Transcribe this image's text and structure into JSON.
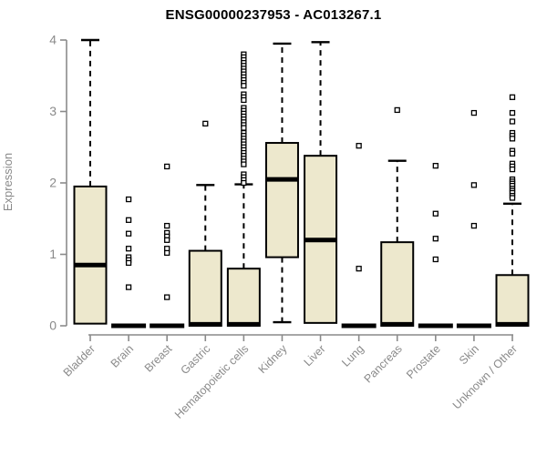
{
  "chart_data": {
    "type": "boxplot",
    "title": "ENSG00000237953 - AC013267.1",
    "ylabel": "Expression",
    "xlabel": "",
    "ylim": [
      0,
      4
    ],
    "yticks": [
      0,
      1,
      2,
      3,
      4
    ],
    "grid": false,
    "legend": false,
    "colors": {
      "box_fill": "#EDE8CD",
      "box_border": "#000000",
      "median": "#000000",
      "whisker": "#000000",
      "outlier_stroke": "#000000",
      "outlier_fill": "#ffffff",
      "axis": "#8a8a8a",
      "tick_label": "#8a8a8a",
      "title": "#000000"
    },
    "categories": [
      "Bladder",
      "Brain",
      "Breast",
      "Gastric",
      "Hematopoietic cells",
      "Kidney",
      "Liver",
      "Lung",
      "Pancreas",
      "Prostate",
      "Skin",
      "Unknown / Other"
    ],
    "series": [
      {
        "category": "Bladder",
        "low": 0,
        "q1": 0.03,
        "median": 0.85,
        "q3": 1.95,
        "high": 4.0,
        "outliers": []
      },
      {
        "category": "Brain",
        "low": 0,
        "q1": 0,
        "median": 0,
        "q3": 0,
        "high": 0,
        "outliers": [
          1.77,
          1.48,
          1.29,
          1.08,
          0.96,
          0.92,
          0.88,
          0.54
        ]
      },
      {
        "category": "Breast",
        "low": 0,
        "q1": 0,
        "median": 0,
        "q3": 0,
        "high": 0,
        "outliers": [
          2.23,
          1.4,
          1.3,
          1.25,
          1.2,
          1.08,
          1.02,
          0.4
        ]
      },
      {
        "category": "Gastric",
        "low": 0,
        "q1": 0,
        "median": 0.02,
        "q3": 1.05,
        "high": 1.97,
        "outliers": [
          2.83
        ]
      },
      {
        "category": "Hematopoietic cells",
        "low": 0,
        "q1": 0,
        "median": 0.02,
        "q3": 0.8,
        "high": 1.98,
        "outliers": [
          3.8,
          3.76,
          3.72,
          3.68,
          3.64,
          3.6,
          3.56,
          3.52,
          3.48,
          3.44,
          3.4,
          3.36,
          3.24,
          3.2,
          3.16,
          3.05,
          3.01,
          2.97,
          2.93,
          2.89,
          2.85,
          2.81,
          2.77,
          2.7,
          2.66,
          2.62,
          2.58,
          2.54,
          2.5,
          2.46,
          2.42,
          2.38,
          2.34,
          2.3,
          2.26,
          2.12,
          2.08,
          2.04,
          2.0
        ]
      },
      {
        "category": "Kidney",
        "low": 0.05,
        "q1": 0.96,
        "median": 2.05,
        "q3": 2.56,
        "high": 3.95,
        "outliers": []
      },
      {
        "category": "Liver",
        "low": 0.04,
        "q1": 0.04,
        "median": 1.2,
        "q3": 2.38,
        "high": 3.97,
        "outliers": []
      },
      {
        "category": "Lung",
        "low": 0,
        "q1": 0,
        "median": 0,
        "q3": 0,
        "high": 0,
        "outliers": [
          2.52,
          0.8
        ]
      },
      {
        "category": "Pancreas",
        "low": 0,
        "q1": 0,
        "median": 0.02,
        "q3": 1.17,
        "high": 2.31,
        "outliers": [
          3.02
        ]
      },
      {
        "category": "Prostate",
        "low": 0,
        "q1": 0,
        "median": 0,
        "q3": 0,
        "high": 0,
        "outliers": [
          2.24,
          1.57,
          1.22,
          0.93
        ]
      },
      {
        "category": "Skin",
        "low": 0,
        "q1": 0,
        "median": 0,
        "q3": 0,
        "high": 0,
        "outliers": [
          2.98,
          1.97,
          1.4
        ]
      },
      {
        "category": "Unknown / Other",
        "low": 0,
        "q1": 0,
        "median": 0.02,
        "q3": 0.71,
        "high": 1.71,
        "outliers": [
          3.2,
          2.98,
          2.86,
          2.7,
          2.66,
          2.62,
          2.45,
          2.41,
          2.27,
          2.23,
          2.19,
          2.05,
          2.02,
          1.99,
          1.96,
          1.92,
          1.89,
          1.86,
          1.82,
          1.79
        ]
      }
    ]
  }
}
